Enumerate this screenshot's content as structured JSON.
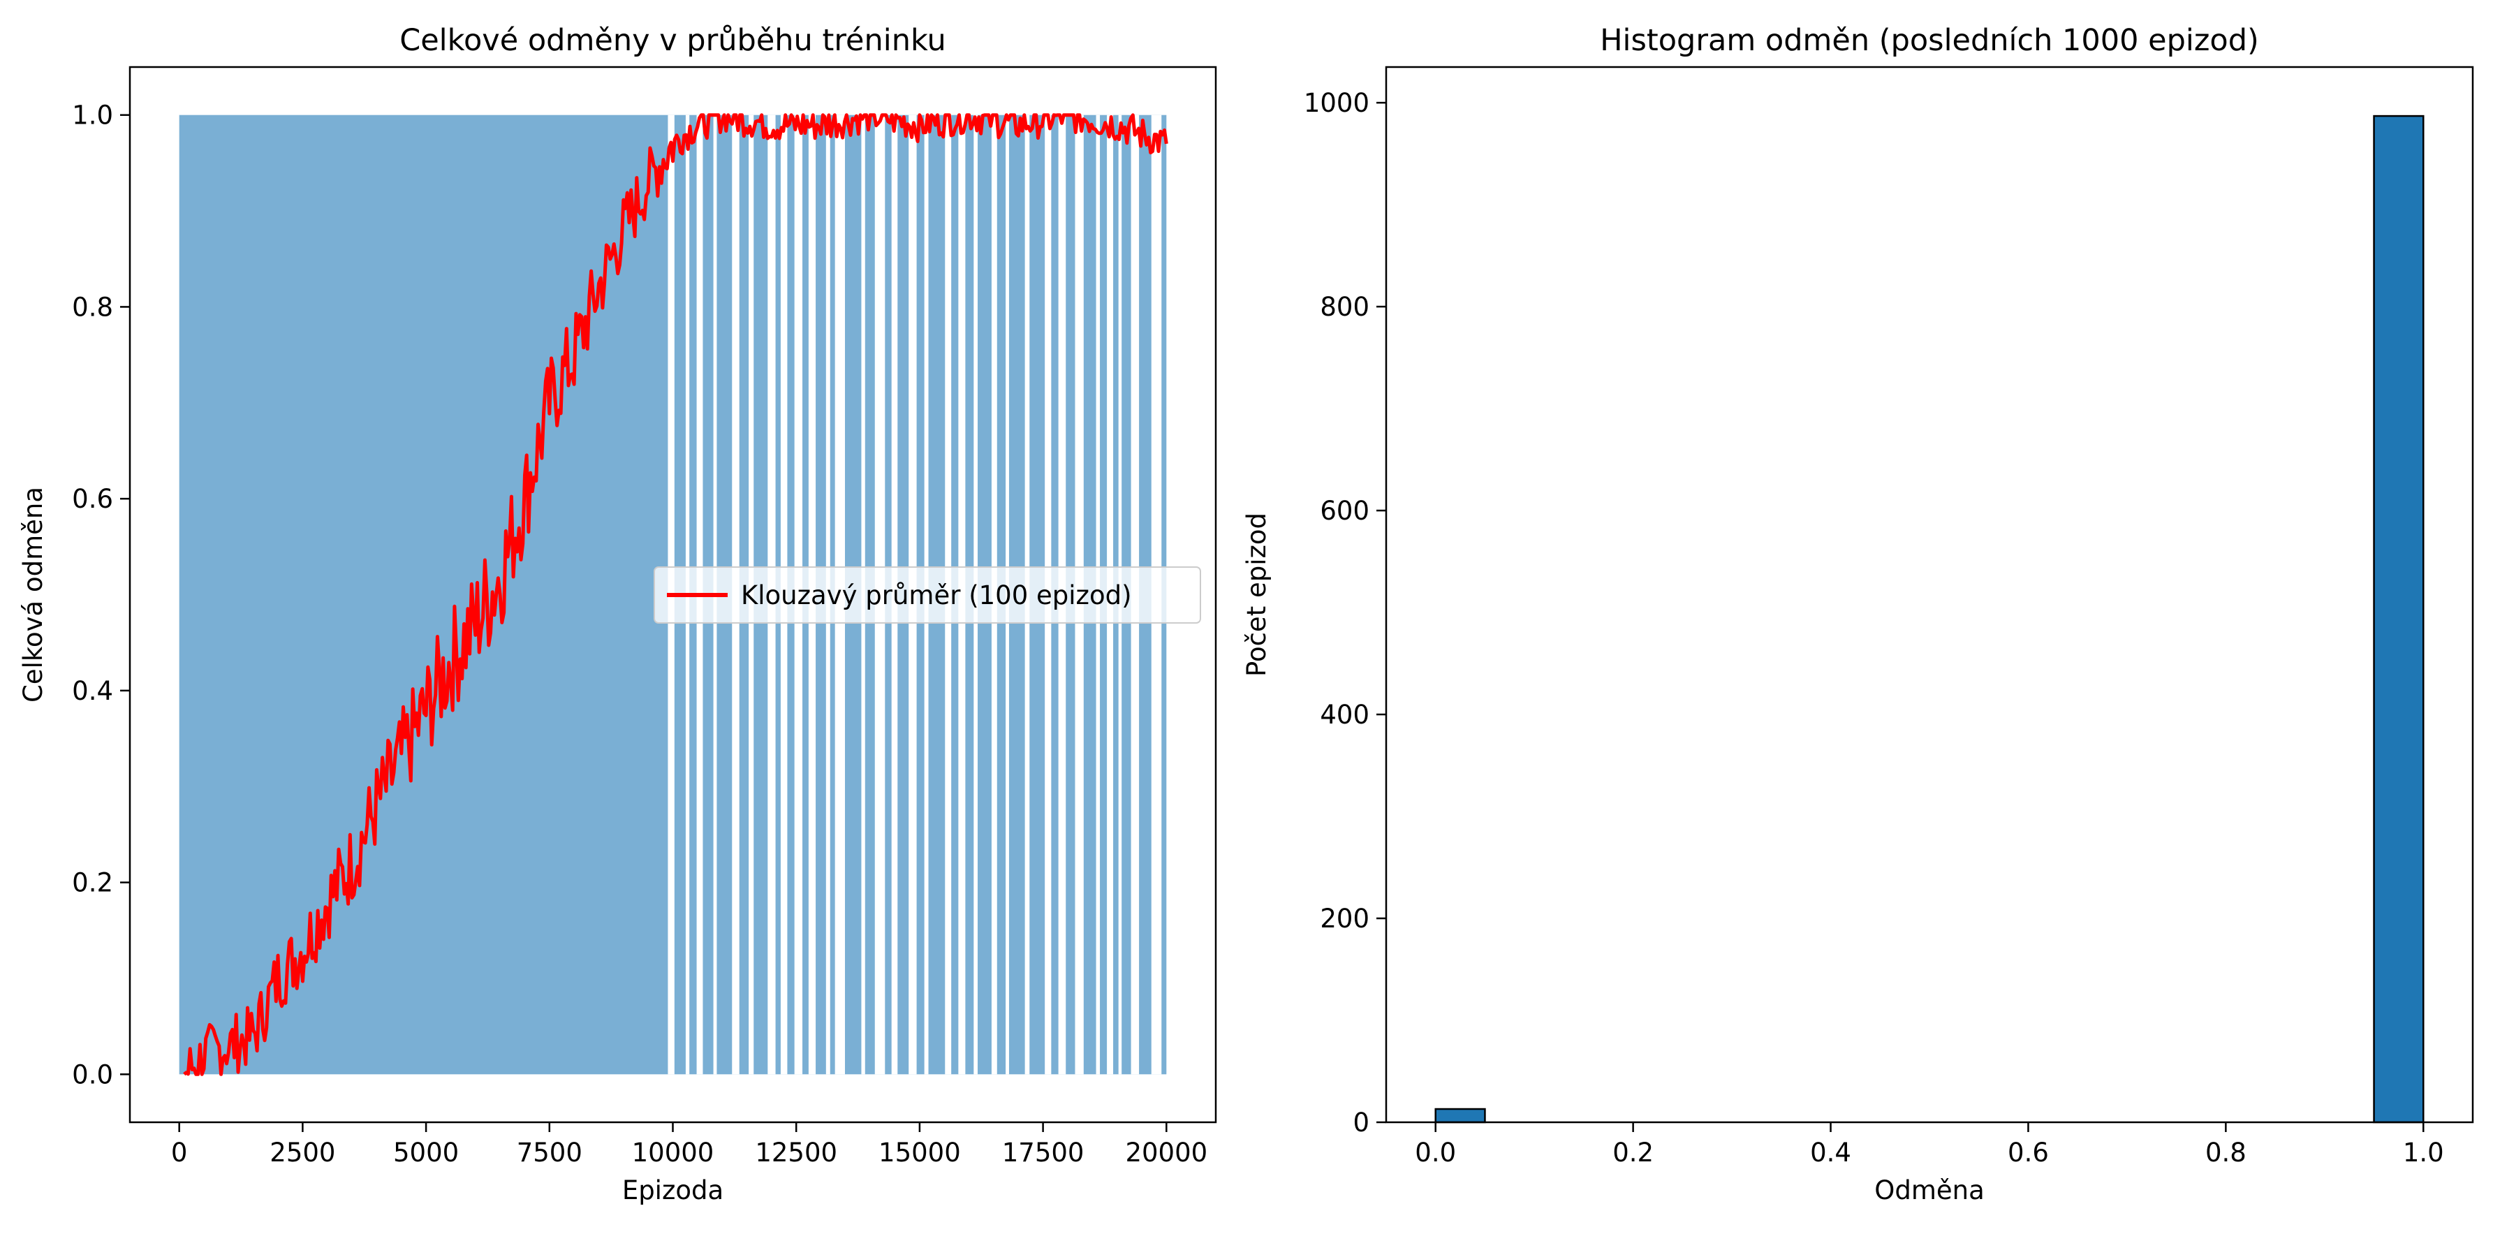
{
  "chart_data": [
    {
      "type": "line",
      "title": "Celkové odměny v průběhu tréninku",
      "xlabel": "Epizoda",
      "ylabel": "Celková odměna",
      "xlim": [
        -1000,
        21000
      ],
      "ylim": [
        -0.05,
        1.05
      ],
      "xticks": [
        0,
        2500,
        5000,
        7500,
        10000,
        12500,
        15000,
        17500,
        20000
      ],
      "yticks": [
        0.0,
        0.2,
        0.4,
        0.6,
        0.8,
        1.0
      ],
      "grid": false,
      "legend_position": "center-right",
      "series": [
        {
          "style": "area",
          "color": "#7aafd4",
          "x": [
            0,
            20000
          ],
          "values": [
            0,
            1
          ]
        },
        {
          "name": "Klouzavý průměr (100 epizod)",
          "style": "line",
          "color": "#ff0000",
          "x": [
            100,
            500,
            1000,
            1500,
            2000,
            2500,
            3000,
            3500,
            4000,
            4500,
            5000,
            5500,
            6000,
            6500,
            7000,
            7500,
            8000,
            8500,
            9000,
            9500,
            10000,
            10500,
            11000,
            12000,
            13000,
            14000,
            15000,
            16000,
            17000,
            18000,
            19000,
            20000
          ],
          "values": [
            0.0,
            0.02,
            0.03,
            0.04,
            0.1,
            0.13,
            0.18,
            0.22,
            0.28,
            0.33,
            0.38,
            0.43,
            0.47,
            0.52,
            0.6,
            0.7,
            0.75,
            0.82,
            0.88,
            0.93,
            0.97,
            0.99,
            1.0,
            0.99,
            0.99,
            1.0,
            0.99,
            1.0,
            0.99,
            1.0,
            0.99,
            0.97
          ]
        }
      ]
    },
    {
      "type": "bar",
      "title": "Histogram odměn (posledních 1000 epizod)",
      "xlabel": "Odměna",
      "ylabel": "Počet epizod",
      "xlim": [
        -0.05,
        1.05
      ],
      "ylim": [
        0,
        1035
      ],
      "xticks": [
        0.0,
        0.2,
        0.4,
        0.6,
        0.8,
        1.0
      ],
      "yticks": [
        0,
        200,
        400,
        600,
        800,
        1000
      ],
      "grid": false,
      "bin_edges": [
        0.0,
        0.05,
        0.1,
        0.15,
        0.2,
        0.25,
        0.3,
        0.35,
        0.4,
        0.45,
        0.5,
        0.55,
        0.6,
        0.65,
        0.7,
        0.75,
        0.8,
        0.85,
        0.9,
        0.95,
        1.0
      ],
      "values": [
        13,
        0,
        0,
        0,
        0,
        0,
        0,
        0,
        0,
        0,
        0,
        0,
        0,
        0,
        0,
        0,
        0,
        0,
        0,
        987
      ],
      "color": "#1f77b4"
    }
  ]
}
